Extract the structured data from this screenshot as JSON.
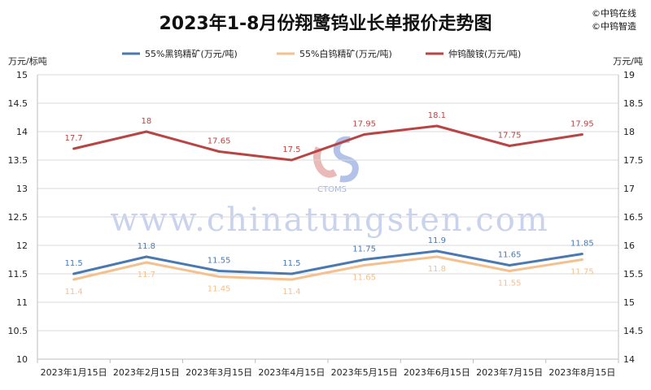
{
  "chart_data": {
    "type": "line",
    "title": "2023年1-8月份翔鹭钨业长单报价走势图",
    "brand": [
      "©中钨在线",
      "©中钨智造"
    ],
    "watermark": "www.chinatungsten.com",
    "logo_text": "CTOMS",
    "left_axis_unit": "万元/标吨",
    "right_axis_unit": "万元/吨",
    "categories": [
      "2023年1月15日",
      "2023年2月15日",
      "2023年3月15日",
      "2023年4月15日",
      "2023年5月15日",
      "2023年6月15日",
      "2023年7月15日",
      "2023年8月15日"
    ],
    "y_left": {
      "min": 10,
      "max": 15,
      "ticks": [
        "10",
        "10.5",
        "11",
        "11.5",
        "12",
        "12.5",
        "13",
        "13.5",
        "14",
        "14.5",
        "15"
      ]
    },
    "y_right": {
      "min": 14,
      "max": 19,
      "ticks": [
        "14",
        "14.5",
        "15",
        "15.5",
        "16",
        "16.5",
        "17",
        "17.5",
        "18",
        "18.5",
        "19"
      ]
    },
    "series": [
      {
        "name": "55%黑钨精矿(万元/吨)",
        "axis": "left",
        "color": "#4a78b0",
        "values": [
          11.5,
          11.8,
          11.55,
          11.5,
          11.75,
          11.9,
          11.65,
          11.85
        ],
        "labels": [
          "11.5",
          "11.8",
          "11.55",
          "11.5",
          "11.75",
          "11.9",
          "11.65",
          "11.85"
        ],
        "label_pos": "above"
      },
      {
        "name": "55%白钨精矿(万元/吨)",
        "axis": "left",
        "color": "#f3c08e",
        "values": [
          11.4,
          11.7,
          11.45,
          11.4,
          11.65,
          11.8,
          11.55,
          11.75
        ],
        "labels": [
          "11.4",
          "11.7",
          "11.45",
          "11.4",
          "11.65",
          "11.8",
          "11.55",
          "11.75"
        ],
        "label_pos": "below"
      },
      {
        "name": "仲钨酸铵(万元/吨)",
        "axis": "right",
        "color": "#b84444",
        "values": [
          17.7,
          18,
          17.65,
          17.5,
          17.95,
          18.1,
          17.75,
          17.95
        ],
        "labels": [
          "17.7",
          "18",
          "17.65",
          "17.5",
          "17.95",
          "18.1",
          "17.75",
          "17.95"
        ],
        "label_pos": "above"
      }
    ],
    "grid": true,
    "legend": "top"
  }
}
